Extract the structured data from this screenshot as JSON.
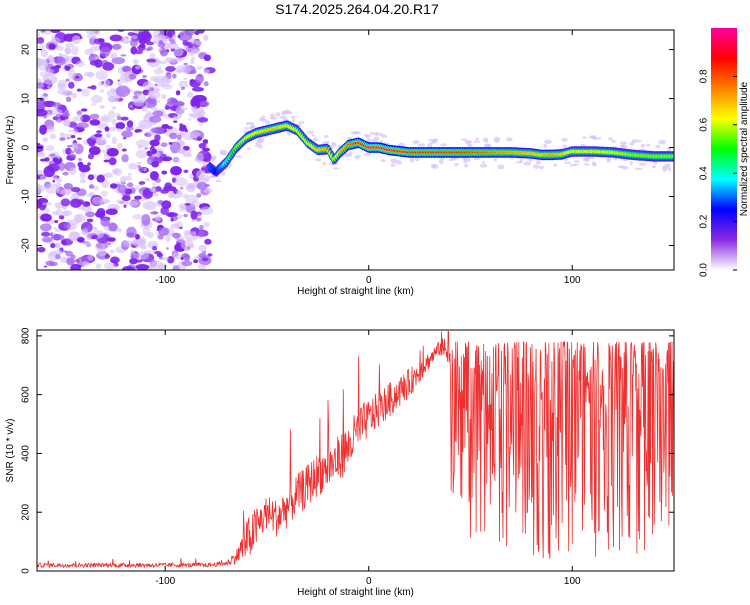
{
  "page": {
    "title": "S174.2025.264.04.20.R17"
  },
  "colors": {
    "snr_line": "#ee3030",
    "noise_dots": "#8a2be2",
    "axis": "#000000"
  },
  "chart_data": [
    {
      "type": "heatmap",
      "xlabel": "Height of straight line (km)",
      "ylabel": "Frequency (Hz)",
      "xlim": [
        -163,
        150
      ],
      "ylim": [
        -25,
        24
      ],
      "xticks": [
        -100,
        0,
        100
      ],
      "xtick_labels": [
        "-100",
        "0",
        "100"
      ],
      "yticks": [
        -20,
        -10,
        0,
        10,
        20
      ],
      "ytick_labels": [
        "-20",
        "-10",
        "0",
        "10",
        "20"
      ],
      "noise_region_x": [
        -163,
        -78
      ],
      "ridge": {
        "x": [
          -78,
          -75,
          -70,
          -65,
          -60,
          -55,
          -50,
          -45,
          -40,
          -35,
          -30,
          -25,
          -20,
          -17,
          -14,
          -10,
          -5,
          0,
          5,
          10,
          20,
          30,
          40,
          50,
          60,
          70,
          80,
          85,
          90,
          95,
          100,
          110,
          120,
          130,
          140,
          150
        ],
        "freq": [
          -4,
          -5,
          -3,
          0,
          2,
          3,
          3.5,
          4,
          4.5,
          3.5,
          1,
          -0.5,
          -0.3,
          -2.5,
          -1,
          0.5,
          1,
          0,
          0,
          -0.5,
          -1,
          -1,
          -1,
          -1,
          -1,
          -1,
          -1.2,
          -1.5,
          -1.5,
          -1.4,
          -0.8,
          -0.8,
          -1,
          -1.5,
          -1.8,
          -1.8
        ],
        "amplitude": [
          0.3,
          0.25,
          0.4,
          0.55,
          0.6,
          0.65,
          0.7,
          0.7,
          0.65,
          0.6,
          0.6,
          0.7,
          0.75,
          0.55,
          0.7,
          0.8,
          0.9,
          0.95,
          0.95,
          0.95,
          0.9,
          0.9,
          0.9,
          0.85,
          0.8,
          0.75,
          0.7,
          0.7,
          0.75,
          0.7,
          0.6,
          0.6,
          0.6,
          0.55,
          0.55,
          0.55
        ]
      },
      "colorbar": {
        "label": "Normalized spectral amplitude",
        "range": [
          0.0,
          1.0
        ],
        "ticks": [
          0.0,
          0.2,
          0.4,
          0.6,
          0.8
        ],
        "tick_labels": [
          "0.0",
          "0.2",
          "0.4",
          "0.6",
          "0.8"
        ],
        "stops": [
          "#ffffff",
          "#8a2be2",
          "#0000ff",
          "#00ffff",
          "#00ff00",
          "#ffff00",
          "#ff8000",
          "#ff0000",
          "#ff00a0"
        ]
      },
      "grid": false
    },
    {
      "type": "line",
      "xlabel": "Height of straight line (km)",
      "ylabel": "SNR (10 * v/v)",
      "xlim": [
        -163,
        150
      ],
      "ylim": [
        0,
        820
      ],
      "xticks": [
        -100,
        0,
        100
      ],
      "xtick_labels": [
        "-100",
        "0",
        "100"
      ],
      "yticks": [
        0,
        200,
        400,
        600,
        800
      ],
      "ytick_labels": [
        "0",
        "200",
        "400",
        "600",
        "800"
      ],
      "series": [
        {
          "x": [
            -163,
            -140,
            -120,
            -100,
            -80,
            -70,
            -65,
            -60,
            -55,
            -50,
            -45,
            -40,
            -35,
            -30,
            -25,
            -20,
            -15,
            -10,
            -5,
            0,
            10,
            20,
            30,
            35,
            40,
            50,
            60,
            70,
            80,
            90,
            100,
            110,
            120,
            130,
            140,
            150
          ],
          "y": [
            20,
            20,
            20,
            20,
            20,
            25,
            50,
            100,
            150,
            200,
            180,
            220,
            260,
            290,
            330,
            350,
            380,
            420,
            480,
            520,
            580,
            640,
            720,
            760,
            740,
            600,
            550,
            600,
            580,
            560,
            570,
            560,
            550,
            560,
            540,
            550
          ],
          "y_spread": [
            15,
            15,
            15,
            15,
            15,
            15,
            50,
            150,
            150,
            120,
            130,
            150,
            140,
            150,
            150,
            150,
            160,
            160,
            160,
            130,
            120,
            100,
            60,
            50,
            150,
            250,
            250,
            300,
            320,
            320,
            320,
            320,
            320,
            320,
            330,
            330
          ]
        }
      ],
      "grid": false
    }
  ]
}
